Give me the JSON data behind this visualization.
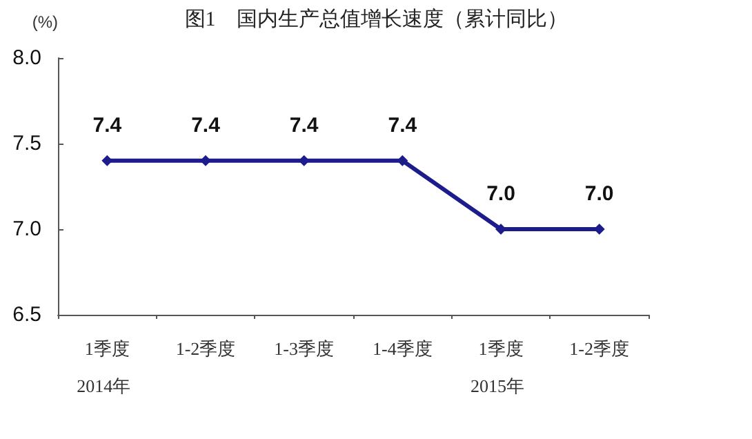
{
  "chart_data": {
    "type": "line",
    "title": "图1　国内生产总值增长速度（累计同比）",
    "ylabel": "(%)",
    "categories": [
      "1季度",
      "1-2季度",
      "1-3季度",
      "1-4季度",
      "1季度",
      "1-2季度"
    ],
    "series": [
      {
        "color": "#1c1c8c",
        "values": [
          7.4,
          7.4,
          7.4,
          7.4,
          7.0,
          7.0
        ],
        "value_labels": [
          "7.4",
          "7.4",
          "7.4",
          "7.4",
          "7.0",
          "7.0"
        ]
      }
    ],
    "ylim": [
      6.5,
      8.0
    ],
    "yticks": [
      "6.5",
      "7.0",
      "7.5",
      "8.0"
    ],
    "annotations": [
      "2014年",
      "2015年"
    ],
    "marker": "diamond",
    "line_style": "solid",
    "grid": false
  }
}
